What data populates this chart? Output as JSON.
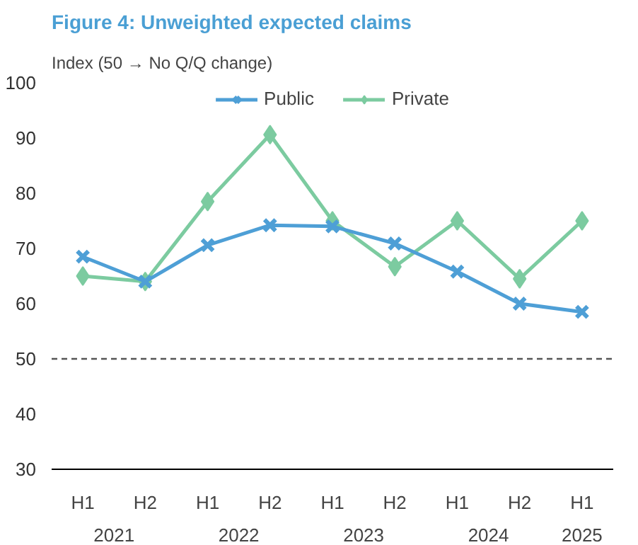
{
  "chart_data": {
    "type": "line",
    "title": "Figure 4: Unweighted expected claims",
    "subtitle": "Index (50 → No Q/Q change)",
    "categories": [
      "H1",
      "H2",
      "H1",
      "H2",
      "H1",
      "H2",
      "H1",
      "H2",
      "H1"
    ],
    "annotations": [
      "2021",
      "2022",
      "2023",
      "2024",
      "2025"
    ],
    "series": [
      {
        "name": "Public",
        "color": "#4e9fd6",
        "marker": "cross",
        "values": [
          68.5,
          64,
          70.6,
          74.2,
          74,
          70.9,
          65.8,
          60,
          58.5
        ]
      },
      {
        "name": "Private",
        "color": "#7ccba0",
        "marker": "diamond",
        "values": [
          65,
          64,
          78.5,
          90.6,
          75,
          66.7,
          75,
          64.5,
          75
        ]
      }
    ],
    "ylim": [
      30,
      100
    ],
    "yticks": [
      30,
      40,
      50,
      60,
      70,
      80,
      90,
      100
    ],
    "grid": false,
    "legend": "top",
    "ref_lines": [
      {
        "axis": "y",
        "value": 50,
        "line_style": "dashed",
        "color": "#555555"
      }
    ]
  }
}
